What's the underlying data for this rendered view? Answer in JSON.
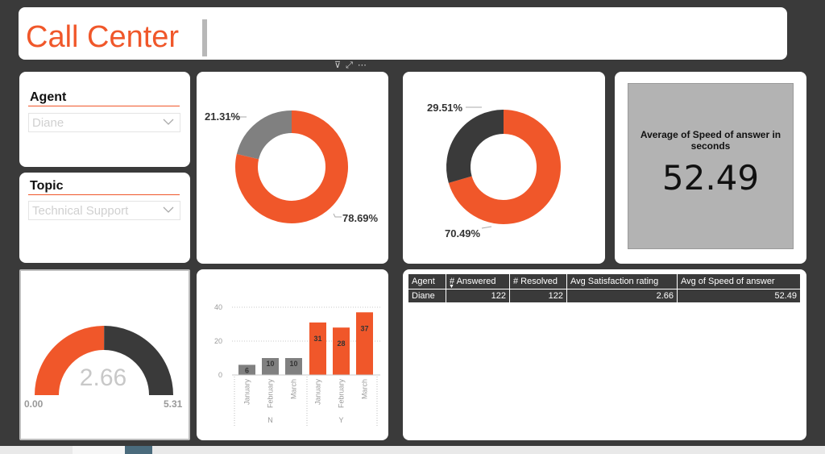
{
  "title": "Call Center",
  "header_icons": [
    "filter-icon",
    "focus-mode-icon",
    "more-options-icon"
  ],
  "colors": {
    "accent": "#f0572a",
    "dark": "#3a3a3a",
    "grey": "#808080"
  },
  "slicers": {
    "agent": {
      "label": "Agent",
      "value": "Diane"
    },
    "topic": {
      "label": "Topic",
      "value": "Technical Support"
    }
  },
  "donut1": {
    "grey_pct": "21.31%",
    "orange_pct": "78.69%"
  },
  "donut2": {
    "dark_pct": "29.51%",
    "orange_pct": "70.49%"
  },
  "kpi": {
    "title": "Average of Speed of answer in seconds",
    "value": "52.49"
  },
  "gauge": {
    "value": 2.66,
    "value_label": "2.66",
    "min": "0.00",
    "max": "5.31"
  },
  "chart_data": {
    "type": "bar",
    "groups": [
      {
        "name": "N",
        "categories": [
          "January",
          "February",
          "March"
        ],
        "values": [
          6,
          10,
          10
        ],
        "color": "#808080"
      },
      {
        "name": "Y",
        "categories": [
          "January",
          "February",
          "March"
        ],
        "values": [
          31,
          28,
          37
        ],
        "color": "#f0572a"
      }
    ],
    "yticks": [
      "0",
      "20",
      "40"
    ],
    "ylim": [
      0,
      40
    ],
    "grid": true
  },
  "table": {
    "headers": [
      "Agent",
      "# Answered",
      "# Resolved",
      "Avg Satisfaction rating",
      "Avg of Speed of answer"
    ],
    "rows": [
      [
        "Diane",
        "122",
        "122",
        "2.66",
        "52.49"
      ]
    ]
  }
}
